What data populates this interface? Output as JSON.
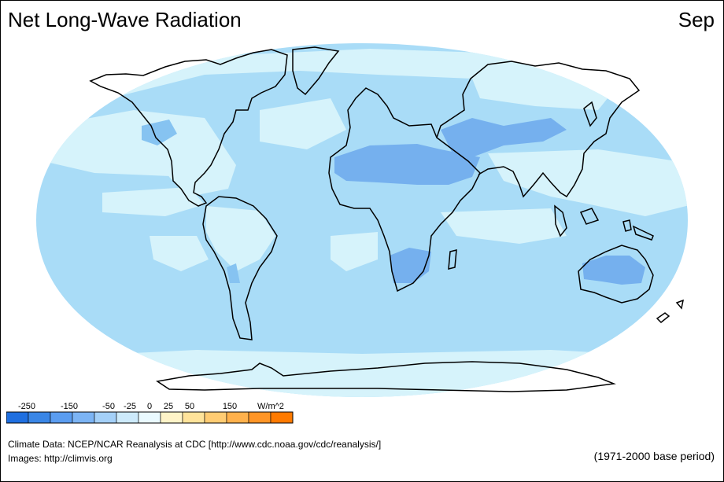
{
  "title": "Net Long-Wave Radiation",
  "month": "Sep",
  "colors": {
    "ocean_base": "#a9dcf7",
    "light_band": "#d6f3fb",
    "medium_band": "#86c3f1",
    "desert_low": "#75b0ee",
    "coast_line": "#000000"
  },
  "legend": {
    "unit": "W/m^2",
    "tick_labels": [
      "-250",
      "-150",
      "-50",
      "-25",
      "0",
      "25",
      "50",
      "150"
    ],
    "swatches": [
      "#1f6fe0",
      "#3a86e6",
      "#5b9df0",
      "#7cb4f4",
      "#a4d0f8",
      "#cdeafb",
      "#eafaff",
      "#fff4c8",
      "#ffe39a",
      "#ffcc73",
      "#ffb14c",
      "#ff9526",
      "#ff7a00"
    ]
  },
  "credits": {
    "line1": "Climate Data:  NCEP/NCAR Reanalysis at CDC [http://www.cdc.noaa.gov/cdc/reanalysis/]",
    "line2": "Images:  http://climvis.org"
  },
  "base_period": "(1971-2000 base period)"
}
